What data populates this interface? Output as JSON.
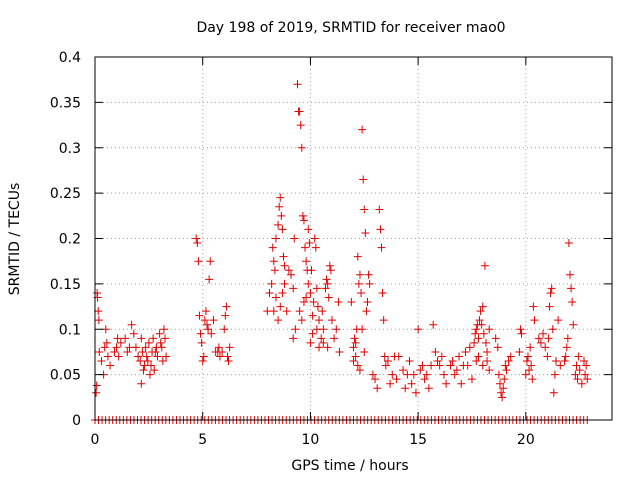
{
  "chart_data": {
    "type": "scatter",
    "title": "Day 198 of 2019, SRMTID for receiver mao0",
    "xlabel": "GPS time / hours",
    "ylabel": "SRMTID / TECUs",
    "xlim": [
      0,
      24
    ],
    "ylim": [
      0,
      0.4
    ],
    "grid": true,
    "x_ticks": [
      0,
      5,
      10,
      15,
      20
    ],
    "x_tick_labels": [
      "0",
      "5",
      "10",
      "15",
      "20"
    ],
    "y_ticks": [
      0,
      0.05,
      0.1,
      0.15,
      0.2,
      0.25,
      0.3,
      0.35,
      0.4
    ],
    "y_tick_labels": [
      "0",
      "0.05",
      "0.1",
      "0.15",
      "0.2",
      "0.25",
      "0.3",
      "0.35",
      "0.4"
    ],
    "marker": "+",
    "color": "#e00000",
    "series": [
      {
        "name": "SRMTID",
        "points": [
          [
            0.05,
            0.03
          ],
          [
            0.08,
            0.038
          ],
          [
            0.1,
            0.14
          ],
          [
            0.12,
            0.135
          ],
          [
            0.15,
            0.12
          ],
          [
            0.18,
            0.11
          ],
          [
            0.2,
            0.075
          ],
          [
            0.3,
            0.065
          ],
          [
            0.4,
            0.05
          ],
          [
            0.45,
            0.08
          ],
          [
            0.5,
            0.1
          ],
          [
            0.55,
            0.085
          ],
          [
            0.6,
            0.07
          ],
          [
            0.7,
            0.06
          ],
          [
            0.9,
            0.075
          ],
          [
            1.0,
            0.08
          ],
          [
            1.05,
            0.09
          ],
          [
            1.1,
            0.07
          ],
          [
            1.2,
            0.085
          ],
          [
            1.4,
            0.09
          ],
          [
            1.5,
            0.075
          ],
          [
            1.6,
            0.08
          ],
          [
            1.7,
            0.105
          ],
          [
            1.8,
            0.095
          ],
          [
            1.9,
            0.08
          ],
          [
            2.0,
            0.07
          ],
          [
            2.1,
            0.065
          ],
          [
            2.15,
            0.09
          ],
          [
            2.2,
            0.075
          ],
          [
            2.3,
            0.06
          ],
          [
            2.35,
            0.08
          ],
          [
            2.4,
            0.07
          ],
          [
            2.5,
            0.085
          ],
          [
            2.6,
            0.06
          ],
          [
            2.7,
            0.09
          ],
          [
            2.8,
            0.075
          ],
          [
            2.9,
            0.07
          ],
          [
            3.0,
            0.095
          ],
          [
            3.1,
            0.08
          ],
          [
            3.2,
            0.1
          ],
          [
            3.3,
            0.07
          ],
          [
            2.15,
            0.04
          ],
          [
            2.25,
            0.055
          ],
          [
            2.45,
            0.065
          ],
          [
            2.55,
            0.05
          ],
          [
            2.65,
            0.075
          ],
          [
            2.75,
            0.055
          ],
          [
            2.85,
            0.08
          ],
          [
            3.05,
            0.085
          ],
          [
            3.15,
            0.065
          ],
          [
            3.25,
            0.09
          ],
          [
            4.7,
            0.2
          ],
          [
            4.75,
            0.195
          ],
          [
            4.8,
            0.175
          ],
          [
            4.85,
            0.115
          ],
          [
            4.9,
            0.095
          ],
          [
            4.95,
            0.085
          ],
          [
            5.0,
            0.065
          ],
          [
            5.05,
            0.07
          ],
          [
            5.1,
            0.11
          ],
          [
            5.15,
            0.12
          ],
          [
            5.2,
            0.105
          ],
          [
            5.25,
            0.1
          ],
          [
            5.3,
            0.155
          ],
          [
            5.35,
            0.175
          ],
          [
            5.4,
            0.095
          ],
          [
            5.5,
            0.11
          ],
          [
            5.6,
            0.075
          ],
          [
            5.7,
            0.075
          ],
          [
            5.75,
            0.08
          ],
          [
            5.8,
            0.07
          ],
          [
            5.9,
            0.075
          ],
          [
            6.0,
            0.1
          ],
          [
            6.05,
            0.115
          ],
          [
            6.1,
            0.125
          ],
          [
            6.15,
            0.07
          ],
          [
            6.2,
            0.065
          ],
          [
            6.25,
            0.08
          ],
          [
            8.0,
            0.12
          ],
          [
            8.1,
            0.14
          ],
          [
            8.2,
            0.15
          ],
          [
            8.25,
            0.19
          ],
          [
            8.3,
            0.175
          ],
          [
            8.35,
            0.165
          ],
          [
            8.4,
            0.2
          ],
          [
            8.5,
            0.215
          ],
          [
            8.55,
            0.235
          ],
          [
            8.6,
            0.245
          ],
          [
            8.65,
            0.225
          ],
          [
            8.7,
            0.21
          ],
          [
            8.75,
            0.18
          ],
          [
            8.8,
            0.17
          ],
          [
            8.3,
            0.12
          ],
          [
            8.4,
            0.135
          ],
          [
            8.5,
            0.11
          ],
          [
            8.6,
            0.125
          ],
          [
            8.7,
            0.14
          ],
          [
            8.8,
            0.15
          ],
          [
            8.9,
            0.12
          ],
          [
            9.0,
            0.165
          ],
          [
            9.1,
            0.16
          ],
          [
            9.2,
            0.145
          ],
          [
            9.25,
            0.2
          ],
          [
            9.4,
            0.37
          ],
          [
            9.45,
            0.34
          ],
          [
            9.5,
            0.34
          ],
          [
            9.55,
            0.325
          ],
          [
            9.6,
            0.3
          ],
          [
            9.65,
            0.225
          ],
          [
            9.7,
            0.22
          ],
          [
            9.75,
            0.19
          ],
          [
            9.8,
            0.175
          ],
          [
            9.85,
            0.165
          ],
          [
            9.9,
            0.21
          ],
          [
            9.95,
            0.195
          ],
          [
            9.2,
            0.09
          ],
          [
            9.3,
            0.1
          ],
          [
            9.5,
            0.12
          ],
          [
            9.6,
            0.11
          ],
          [
            9.7,
            0.13
          ],
          [
            9.8,
            0.135
          ],
          [
            9.9,
            0.15
          ],
          [
            10.0,
            0.14
          ],
          [
            10.05,
            0.165
          ],
          [
            10.1,
            0.115
          ],
          [
            10.15,
            0.13
          ],
          [
            10.2,
            0.2
          ],
          [
            10.25,
            0.19
          ],
          [
            10.3,
            0.145
          ],
          [
            10.35,
            0.125
          ],
          [
            10.4,
            0.11
          ],
          [
            10.5,
            0.09
          ],
          [
            10.55,
            0.12
          ],
          [
            10.6,
            0.1
          ],
          [
            10.7,
            0.145
          ],
          [
            10.75,
            0.155
          ],
          [
            10.8,
            0.15
          ],
          [
            10.85,
            0.135
          ],
          [
            10.9,
            0.17
          ],
          [
            10.95,
            0.165
          ],
          [
            10.0,
            0.085
          ],
          [
            10.1,
            0.095
          ],
          [
            10.3,
            0.1
          ],
          [
            10.4,
            0.08
          ],
          [
            10.6,
            0.085
          ],
          [
            10.8,
            0.08
          ],
          [
            11.0,
            0.11
          ],
          [
            11.1,
            0.09
          ],
          [
            11.2,
            0.1
          ],
          [
            11.3,
            0.13
          ],
          [
            11.35,
            0.075
          ],
          [
            11.9,
            0.13
          ],
          [
            12.0,
            0.08
          ],
          [
            12.05,
            0.09
          ],
          [
            12.1,
            0.085
          ],
          [
            12.15,
            0.1
          ],
          [
            12.2,
            0.18
          ],
          [
            12.25,
            0.15
          ],
          [
            12.3,
            0.16
          ],
          [
            12.35,
            0.14
          ],
          [
            12.4,
            0.32
          ],
          [
            12.45,
            0.265
          ],
          [
            12.5,
            0.232
          ],
          [
            12.55,
            0.206
          ],
          [
            12.0,
            0.065
          ],
          [
            12.1,
            0.07
          ],
          [
            12.2,
            0.06
          ],
          [
            12.3,
            0.055
          ],
          [
            12.4,
            0.1
          ],
          [
            12.5,
            0.075
          ],
          [
            12.6,
            0.12
          ],
          [
            12.65,
            0.13
          ],
          [
            12.7,
            0.16
          ],
          [
            12.75,
            0.15
          ],
          [
            12.9,
            0.05
          ],
          [
            13.0,
            0.045
          ],
          [
            13.1,
            0.035
          ],
          [
            13.2,
            0.232
          ],
          [
            13.25,
            0.21
          ],
          [
            13.3,
            0.19
          ],
          [
            13.35,
            0.14
          ],
          [
            13.4,
            0.11
          ],
          [
            13.45,
            0.07
          ],
          [
            13.5,
            0.06
          ],
          [
            13.6,
            0.065
          ],
          [
            13.7,
            0.04
          ],
          [
            13.8,
            0.05
          ],
          [
            13.9,
            0.07
          ],
          [
            14.0,
            0.045
          ],
          [
            14.1,
            0.07
          ],
          [
            14.3,
            0.055
          ],
          [
            14.4,
            0.035
          ],
          [
            14.5,
            0.05
          ],
          [
            14.6,
            0.065
          ],
          [
            14.7,
            0.04
          ],
          [
            14.8,
            0.05
          ],
          [
            14.9,
            0.03
          ],
          [
            15.0,
            0.1
          ],
          [
            15.1,
            0.055
          ],
          [
            15.2,
            0.06
          ],
          [
            15.3,
            0.045
          ],
          [
            15.4,
            0.05
          ],
          [
            15.5,
            0.035
          ],
          [
            15.6,
            0.06
          ],
          [
            15.7,
            0.105
          ],
          [
            15.8,
            0.075
          ],
          [
            15.9,
            0.065
          ],
          [
            16.0,
            0.06
          ],
          [
            16.1,
            0.07
          ],
          [
            16.2,
            0.05
          ],
          [
            16.3,
            0.04
          ],
          [
            16.5,
            0.06
          ],
          [
            16.6,
            0.065
          ],
          [
            16.7,
            0.05
          ],
          [
            16.8,
            0.055
          ],
          [
            16.9,
            0.07
          ],
          [
            17.0,
            0.04
          ],
          [
            17.1,
            0.06
          ],
          [
            17.2,
            0.075
          ],
          [
            17.3,
            0.06
          ],
          [
            17.4,
            0.08
          ],
          [
            17.5,
            0.045
          ],
          [
            17.6,
            0.085
          ],
          [
            17.65,
            0.095
          ],
          [
            17.7,
            0.1
          ],
          [
            17.75,
            0.105
          ],
          [
            17.8,
            0.09
          ],
          [
            17.85,
            0.11
          ],
          [
            17.9,
            0.12
          ],
          [
            17.95,
            0.105
          ],
          [
            18.0,
            0.125
          ],
          [
            18.05,
            0.095
          ],
          [
            18.1,
            0.17
          ],
          [
            18.15,
            0.085
          ],
          [
            18.2,
            0.075
          ],
          [
            18.3,
            0.1
          ],
          [
            17.7,
            0.065
          ],
          [
            17.8,
            0.07
          ],
          [
            18.0,
            0.06
          ],
          [
            18.2,
            0.065
          ],
          [
            18.3,
            0.055
          ],
          [
            18.6,
            0.09
          ],
          [
            18.7,
            0.08
          ],
          [
            18.75,
            0.05
          ],
          [
            18.8,
            0.04
          ],
          [
            18.85,
            0.03
          ],
          [
            18.9,
            0.025
          ],
          [
            18.95,
            0.035
          ],
          [
            19.0,
            0.045
          ],
          [
            19.05,
            0.06
          ],
          [
            19.1,
            0.055
          ],
          [
            19.2,
            0.065
          ],
          [
            19.3,
            0.07
          ],
          [
            19.7,
            0.075
          ],
          [
            19.75,
            0.1
          ],
          [
            19.8,
            0.095
          ],
          [
            20.0,
            0.05
          ],
          [
            20.05,
            0.065
          ],
          [
            20.1,
            0.07
          ],
          [
            20.15,
            0.055
          ],
          [
            20.2,
            0.08
          ],
          [
            20.25,
            0.06
          ],
          [
            20.3,
            0.045
          ],
          [
            20.35,
            0.125
          ],
          [
            20.4,
            0.11
          ],
          [
            20.6,
            0.09
          ],
          [
            20.7,
            0.085
          ],
          [
            20.8,
            0.095
          ],
          [
            20.9,
            0.08
          ],
          [
            21.0,
            0.07
          ],
          [
            21.05,
            0.09
          ],
          [
            21.1,
            0.125
          ],
          [
            21.15,
            0.14
          ],
          [
            21.2,
            0.145
          ],
          [
            21.25,
            0.1
          ],
          [
            21.3,
            0.03
          ],
          [
            21.35,
            0.05
          ],
          [
            21.4,
            0.065
          ],
          [
            21.5,
            0.11
          ],
          [
            21.6,
            0.06
          ],
          [
            21.8,
            0.065
          ],
          [
            21.85,
            0.07
          ],
          [
            21.9,
            0.08
          ],
          [
            21.95,
            0.09
          ],
          [
            22.0,
            0.195
          ],
          [
            22.05,
            0.16
          ],
          [
            22.1,
            0.145
          ],
          [
            22.15,
            0.13
          ],
          [
            22.2,
            0.105
          ],
          [
            22.3,
            0.05
          ],
          [
            22.35,
            0.06
          ],
          [
            22.4,
            0.045
          ],
          [
            22.45,
            0.07
          ],
          [
            22.5,
            0.055
          ],
          [
            22.6,
            0.04
          ],
          [
            22.7,
            0.065
          ],
          [
            22.75,
            0.05
          ],
          [
            22.8,
            0.06
          ],
          [
            22.85,
            0.045
          ]
        ],
        "zero_ranges": [
          [
            0,
            22.85
          ]
        ],
        "zero_count": 140
      }
    ]
  }
}
